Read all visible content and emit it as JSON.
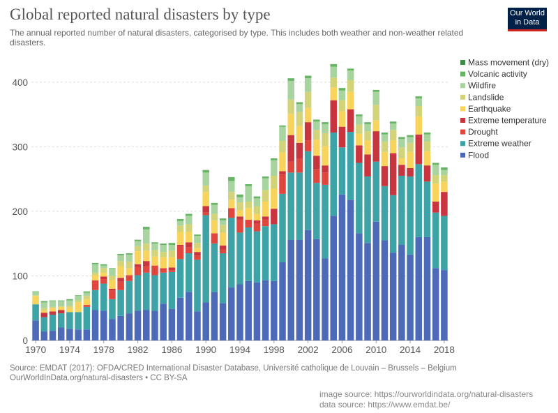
{
  "header": {
    "title": "Global reported natural disasters by type",
    "subtitle": "The annual reported number of natural disasters, categorised by type. This includes both weather and non-weather related disasters.",
    "logo_line1": "Our World",
    "logo_line2": "in Data"
  },
  "footer": {
    "source_line1": "Source: EMDAT (2017): OFDA/CRED International Disaster Database, Université catholique de Louvain – Brussels – Belgium",
    "source_line2": "OurWorldInData.org/natural-disasters • CC BY-SA",
    "image_source": "image source: https://ourworldindata.org/natural-disasters",
    "data_source": "data source:  https://www.emdat.be/"
  },
  "chart_data": {
    "type": "bar",
    "stacked": true,
    "title": "Global reported natural disasters by type",
    "xlabel": "",
    "ylabel": "",
    "ylim": [
      0,
      430
    ],
    "yticks": [
      0,
      100,
      200,
      300,
      400
    ],
    "xticks": [
      "1970",
      "1974",
      "1978",
      "1982",
      "1986",
      "1990",
      "1994",
      "1998",
      "2002",
      "2006",
      "2010",
      "2014",
      "2018"
    ],
    "grid": "horizontal dashed",
    "legend_position": "right",
    "categories": [
      "1970",
      "1971",
      "1972",
      "1973",
      "1974",
      "1975",
      "1976",
      "1977",
      "1978",
      "1979",
      "1980",
      "1981",
      "1982",
      "1983",
      "1984",
      "1985",
      "1986",
      "1987",
      "1988",
      "1989",
      "1990",
      "1991",
      "1992",
      "1993",
      "1994",
      "1995",
      "1996",
      "1997",
      "1998",
      "1999",
      "2000",
      "2001",
      "2002",
      "2003",
      "2004",
      "2005",
      "2006",
      "2007",
      "2008",
      "2009",
      "2010",
      "2011",
      "2012",
      "2013",
      "2014",
      "2015",
      "2016",
      "2017",
      "2018"
    ],
    "series": [
      {
        "name": "Flood",
        "color": "#4c6ab8",
        "values": [
          31,
          14,
          15,
          20,
          18,
          17,
          17,
          47,
          46,
          33,
          38,
          42,
          46,
          47,
          46,
          57,
          49,
          66,
          75,
          45,
          59,
          75,
          58,
          82,
          87,
          92,
          90,
          93,
          92,
          121,
          156,
          156,
          171,
          157,
          127,
          193,
          226,
          218,
          166,
          151,
          184,
          155,
          136,
          148,
          133,
          160,
          160,
          112,
          109
        ]
      },
      {
        "name": "Extreme weather",
        "color": "#3da3a6",
        "values": [
          25,
          22,
          25,
          22,
          26,
          27,
          35,
          31,
          42,
          31,
          40,
          50,
          55,
          58,
          55,
          48,
          57,
          60,
          60,
          80,
          135,
          75,
          77,
          108,
          80,
          83,
          79,
          84,
          88,
          106,
          104,
          104,
          122,
          87,
          114,
          129,
          73,
          105,
          109,
          103,
          93,
          84,
          89,
          107,
          121,
          113,
          86,
          86,
          84
        ]
      },
      {
        "name": "Drought",
        "color": "#e0463e",
        "values": [
          0,
          0,
          0,
          0,
          0,
          0,
          3,
          15,
          7,
          13,
          13,
          9,
          13,
          10,
          15,
          7,
          3,
          20,
          9,
          6,
          4,
          16,
          6,
          15,
          20,
          12,
          12,
          10,
          0,
          30,
          17,
          22,
          17,
          21,
          19,
          0,
          0,
          0,
          0,
          0,
          0,
          0,
          0,
          0,
          0,
          0,
          0,
          0,
          0
        ]
      },
      {
        "name": "Extreme temperature",
        "color": "#c9353f",
        "values": [
          0,
          7,
          5,
          5,
          0,
          0,
          0,
          0,
          4,
          3,
          6,
          0,
          4,
          8,
          0,
          0,
          4,
          2,
          8,
          6,
          10,
          0,
          6,
          0,
          5,
          0,
          5,
          5,
          24,
          5,
          41,
          24,
          28,
          21,
          11,
          50,
          32,
          35,
          27,
          34,
          47,
          31,
          65,
          17,
          13,
          46,
          25,
          17,
          37
        ]
      },
      {
        "name": "Earthquake",
        "color": "#f8d45c",
        "values": [
          13,
          3,
          5,
          5,
          7,
          15,
          9,
          8,
          6,
          14,
          18,
          11,
          20,
          16,
          14,
          17,
          16,
          20,
          16,
          6,
          22,
          20,
          20,
          13,
          10,
          18,
          10,
          23,
          31,
          29,
          33,
          26,
          22,
          25,
          30,
          20,
          24,
          27,
          18,
          22,
          17,
          22,
          20,
          10,
          25,
          28,
          22,
          28,
          16
        ]
      },
      {
        "name": "Landslide",
        "color": "#d3d37a",
        "values": [
          1,
          4,
          2,
          1,
          3,
          3,
          5,
          4,
          7,
          6,
          8,
          10,
          8,
          11,
          10,
          8,
          10,
          10,
          12,
          8,
          10,
          10,
          12,
          12,
          12,
          10,
          12,
          18,
          20,
          18,
          22,
          22,
          25,
          15,
          20,
          15,
          17,
          18,
          14,
          14,
          24,
          16,
          16,
          17,
          14,
          16,
          15,
          13,
          10
        ]
      },
      {
        "name": "Wildfire",
        "color": "#a7d49f",
        "values": [
          5,
          9,
          9,
          8,
          8,
          7,
          5,
          13,
          4,
          11,
          9,
          11,
          8,
          22,
          10,
          11,
          9,
          7,
          13,
          11,
          20,
          14,
          7,
          17,
          8,
          24,
          12,
          18,
          24,
          22,
          29,
          12,
          21,
          13,
          14,
          17,
          15,
          15,
          13,
          11,
          20,
          11,
          10,
          13,
          9,
          12,
          11,
          16,
          8
        ]
      },
      {
        "name": "Volcanic activity",
        "color": "#67b564",
        "values": [
          1,
          2,
          1,
          1,
          2,
          1,
          2,
          2,
          2,
          1,
          2,
          2,
          2,
          4,
          2,
          2,
          3,
          3,
          3,
          2,
          4,
          3,
          3,
          6,
          4,
          3,
          3,
          3,
          3,
          2,
          4,
          3,
          4,
          3,
          3,
          4,
          4,
          3,
          3,
          3,
          3,
          3,
          3,
          3,
          3,
          3,
          3,
          3,
          4
        ]
      },
      {
        "name": "Mass movement (dry)",
        "color": "#3d8c4a",
        "values": [
          0,
          0,
          0,
          0,
          0,
          0,
          0,
          0,
          0,
          0,
          0,
          0,
          0,
          0,
          0,
          0,
          0,
          0,
          0,
          0,
          0,
          0,
          0,
          0,
          0,
          0,
          0,
          0,
          0,
          0,
          0,
          0,
          0,
          0,
          0,
          0,
          0,
          0,
          0,
          0,
          0,
          0,
          0,
          0,
          0,
          0,
          0,
          0,
          0
        ]
      }
    ],
    "legend_order": [
      "Mass movement (dry)",
      "Volcanic activity",
      "Wildfire",
      "Landslide",
      "Earthquake",
      "Extreme temperature",
      "Drought",
      "Extreme weather",
      "Flood"
    ]
  }
}
